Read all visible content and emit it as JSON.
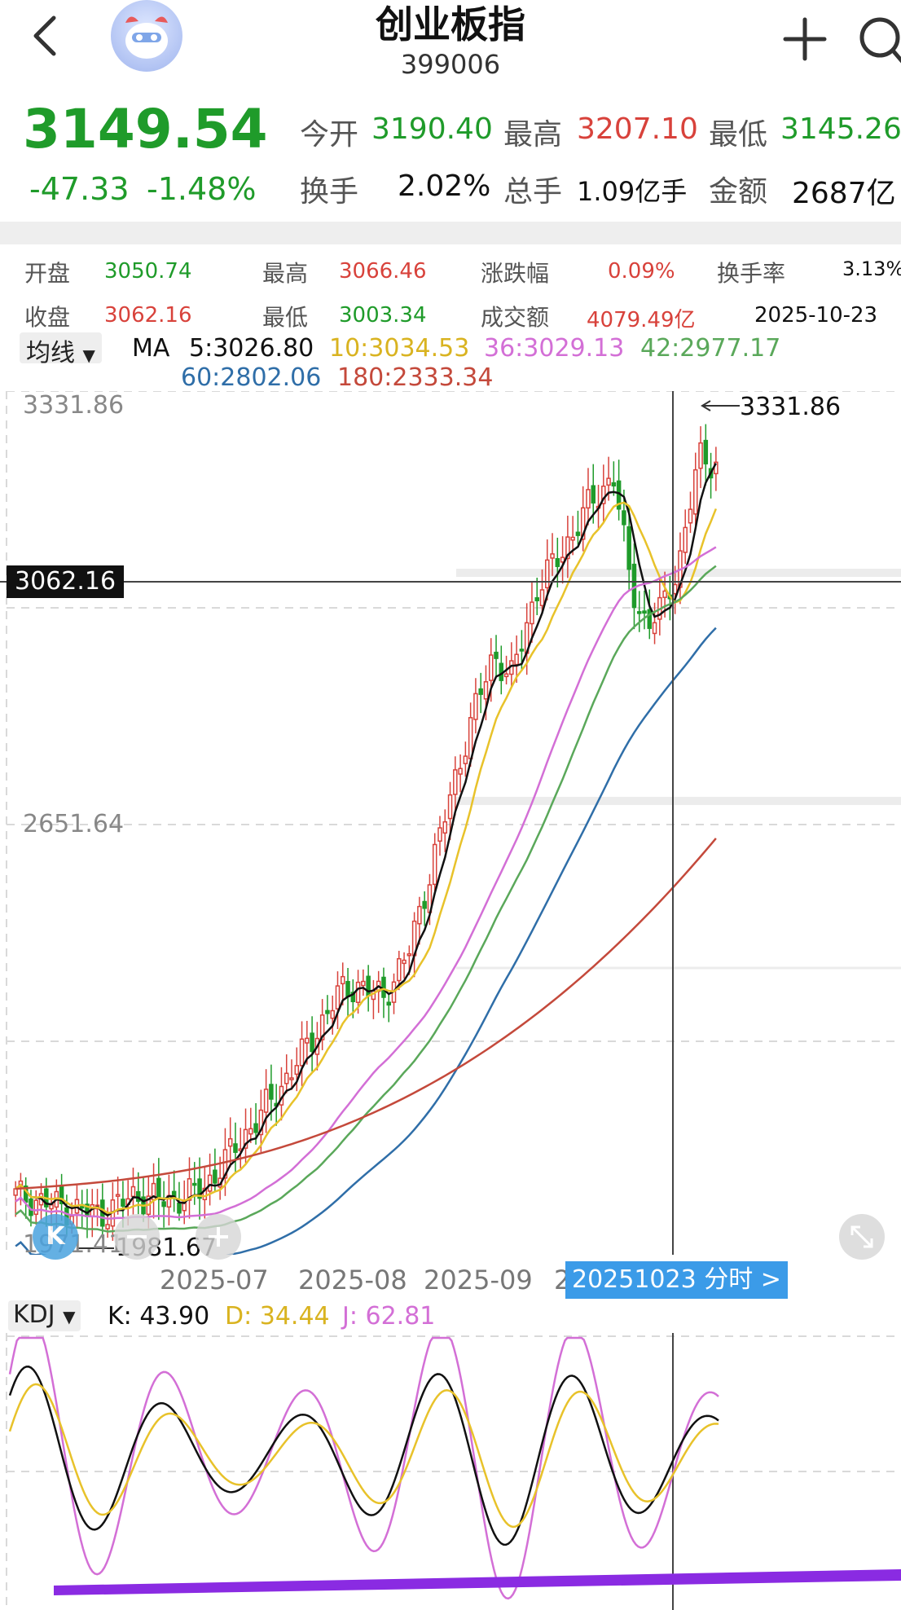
{
  "header": {
    "title": "创业板指",
    "code": "399006"
  },
  "quote": {
    "price": "3149.54",
    "change": "-47.33",
    "change_pct": "-1.48%",
    "open_label": "今开",
    "open": "3190.40",
    "high_label": "最高",
    "high": "3207.10",
    "low_label": "最低",
    "low": "3145.26",
    "turnover_label": "换手",
    "turnover": "2.02%",
    "volume_label": "总手",
    "volume": "1.09亿手",
    "amount_label": "金额",
    "amount": "2687亿"
  },
  "day_info": {
    "open_label": "开盘",
    "open": "3050.74",
    "high_label": "最高",
    "high": "3066.46",
    "chg_label": "涨跌幅",
    "chg": "0.09%",
    "turnover_label": "换手率",
    "turnover": "3.13%",
    "close_label": "收盘",
    "close": "3062.16",
    "low_label": "最低",
    "low": "3003.34",
    "amount_label": "成交额",
    "amount": "4079.49亿",
    "date": "2025-10-23"
  },
  "ma_legend": {
    "selector": "均线",
    "prefix": "MA",
    "ma5": "5:3026.80",
    "ma10": "10:3034.53",
    "ma36": "36:3029.13",
    "ma42": "42:2977.17",
    "ma60": "60:2802.06",
    "ma180": "180:2333.34"
  },
  "chart": {
    "y_top": "3331.86",
    "y_mid": "2651.64",
    "y_low": "1971.41",
    "crosshair_value": "3062.16",
    "max_marker": "3331.86",
    "min_marker": "1981.67",
    "x_labels": [
      "2025-07",
      "2025-08",
      "2025-09",
      "2"
    ],
    "tooltip": "20251023 分时 >",
    "k_badge": "K"
  },
  "kdj": {
    "selector": "KDJ",
    "k": "K: 43.90",
    "d": "D: 34.44",
    "j": "J: 62.81"
  },
  "colors": {
    "up": "#d8423b",
    "down": "#1f9b2a",
    "ma5": "#111111",
    "ma10": "#e8c22a",
    "ma36": "#d36fd6",
    "ma42": "#5aa85a",
    "ma60": "#2f6ea8",
    "ma180": "#c4493b",
    "trendline": "#8a2be2",
    "tooltip_bg": "#3b9be8"
  },
  "icons": {
    "back": "back-icon",
    "avatar": "mascot-icon",
    "add": "plus-icon",
    "search": "search-icon",
    "zoom_out": "minus-icon",
    "zoom_in": "plus-icon",
    "expand": "expand-icon"
  }
}
